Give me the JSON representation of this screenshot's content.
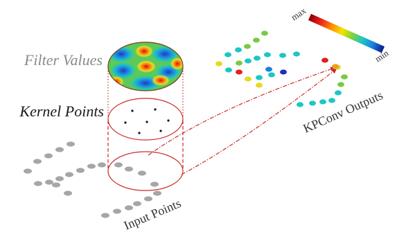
{
  "labels": {
    "filter_values": "Filter Values",
    "kernel_points": "Kernel Points",
    "input_points": "Input Points",
    "kpconv_outputs": "KPConv Outputs",
    "scale_max": "max",
    "scale_min": "min"
  },
  "colors": {
    "filter_label": "#8a8a8a",
    "kernel_label": "#1a1a1a",
    "input_label": "#333333",
    "output_label": "#333333",
    "circle_stroke": "#cc2a2a",
    "input_point": "#a6a6a6",
    "kernel_point": "#111111",
    "colormap": [
      "#8b0000",
      "#e81e1e",
      "#ff8c00",
      "#f5e400",
      "#7fd13b",
      "#19c7c7",
      "#1e7fe0",
      "#0a1a8c"
    ]
  },
  "output_point_colors": [
    "#7ac943",
    "#7ac943",
    "#7ac943",
    "#19c7c7",
    "#19c7c7",
    "#e8d820",
    "#19c7c7",
    "#7ac943",
    "#19c7c7",
    "#19c7c7",
    "#19c7c7",
    "#19c7c7",
    "#19c7c7",
    "#1e2fbf",
    "#19c7c7",
    "#e02020",
    "#e8d820",
    "#e02020",
    "#e8d820",
    "#1e7fe0",
    "#e8d820",
    "#19c7c7",
    "#7ac943",
    "#7ac943",
    "#e8a020",
    "#19c7c7",
    "#19c7c7",
    "#19c7c7",
    "#19c7c7",
    "#19c7c7"
  ]
}
